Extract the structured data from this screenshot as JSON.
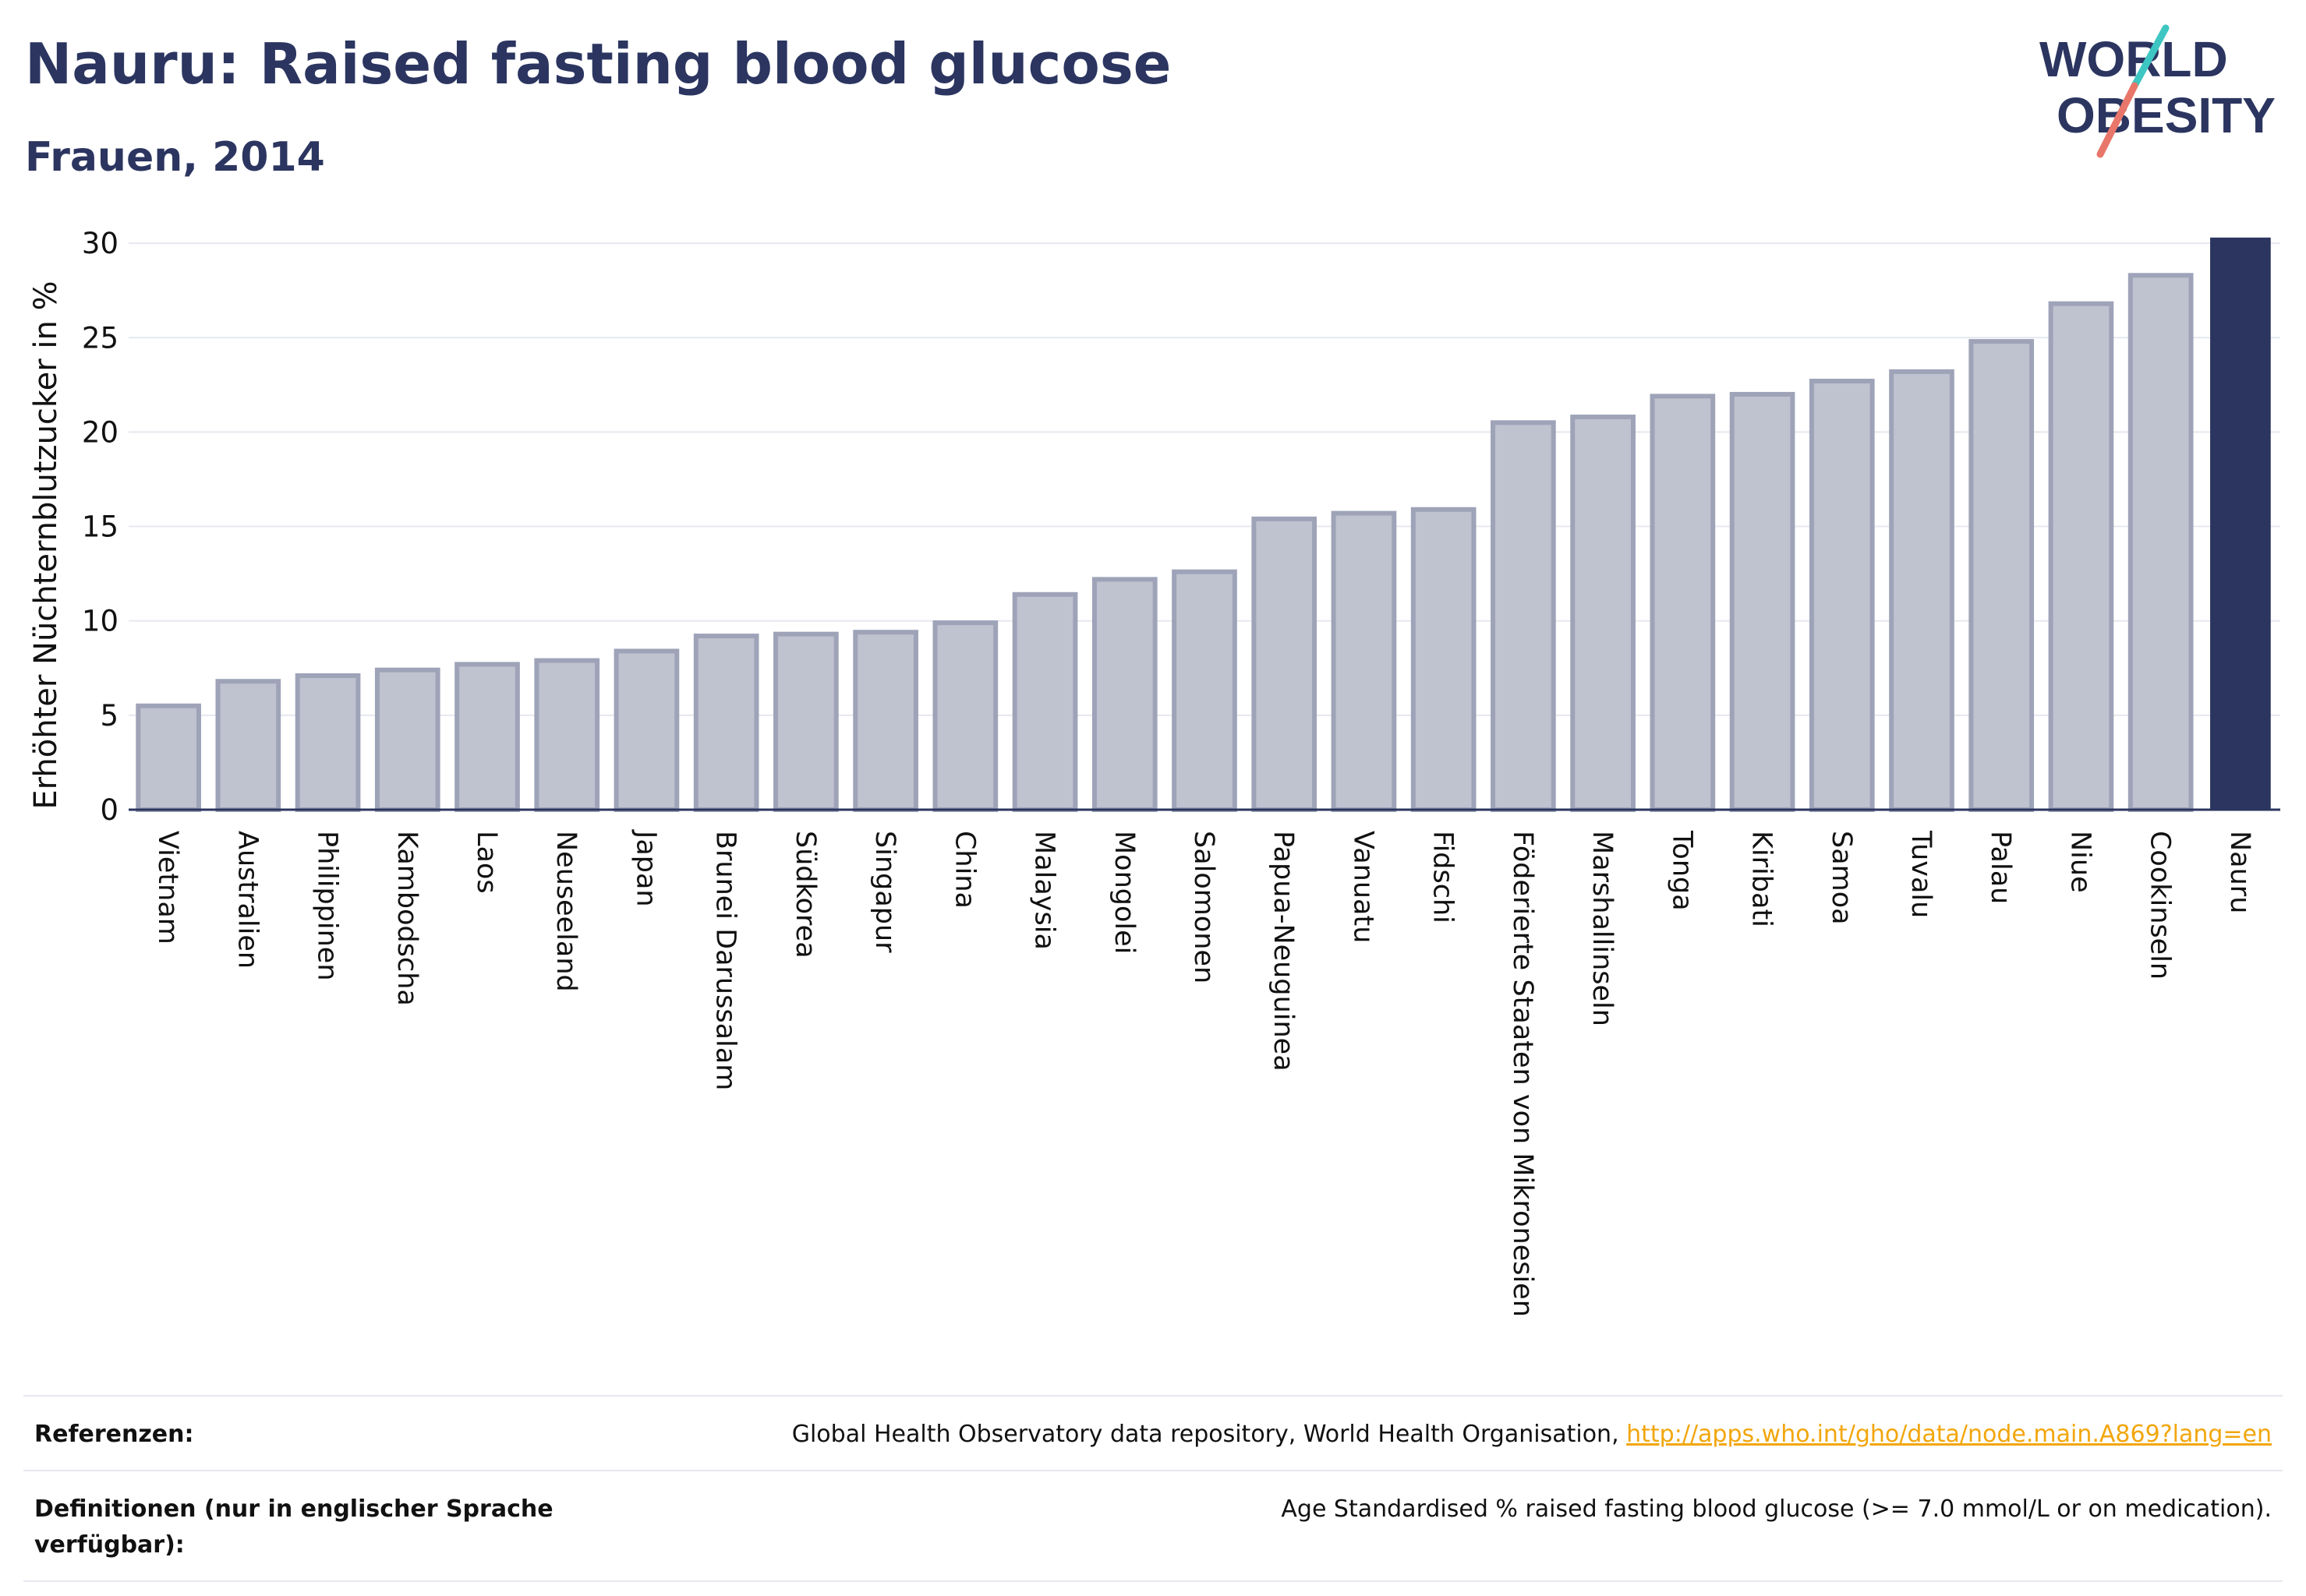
{
  "header": {
    "title": "Nauru: Raised fasting blood glucose",
    "subtitle": "Frauen, 2014"
  },
  "logo": {
    "line1": "WORLD",
    "line2": "OBESITY",
    "colors": {
      "text": "#2b3560",
      "teal": "#3ec6c2",
      "coral": "#e8766a"
    }
  },
  "chart_data": {
    "type": "bar",
    "title": "",
    "xlabel": "",
    "ylabel": "Erhöhter Nüchternblutzucker in %",
    "ylim": [
      0,
      30.5
    ],
    "yticks": [
      0,
      5,
      10,
      15,
      20,
      25,
      30
    ],
    "grid": true,
    "legend": "none",
    "categories": [
      "Vietnam",
      "Australien",
      "Philippinen",
      "Kambodscha",
      "Laos",
      "Neuseeland",
      "Japan",
      "Brunei Darussalam",
      "Südkorea",
      "Singapur",
      "China",
      "Malaysia",
      "Mongolei",
      "Salomonen",
      "Papua-Neuguinea",
      "Vanuatu",
      "Fidschi",
      "Föderierte Staaten von Mikronesien",
      "Marshallinseln",
      "Tonga",
      "Kiribati",
      "Samoa",
      "Tuvalu",
      "Palau",
      "Niue",
      "Cookinseln",
      "Nauru"
    ],
    "values": [
      5.5,
      6.8,
      7.1,
      7.4,
      7.7,
      7.9,
      8.4,
      9.2,
      9.3,
      9.4,
      9.9,
      11.4,
      12.2,
      12.6,
      15.4,
      15.7,
      15.9,
      20.5,
      20.8,
      21.9,
      22.0,
      22.7,
      23.2,
      24.8,
      26.8,
      28.3,
      30.3
    ],
    "highlight": "Nauru",
    "colors": {
      "bar": "#bfc2cf",
      "bar_border": "#9ea3b8",
      "highlight": "#2b3560",
      "grid": "#e6e8ef",
      "axis": "#2b3560"
    }
  },
  "references": [
    {
      "label": "Referenzen:",
      "text": "Global Health Observatory data repository, World Health Organisation, ",
      "link": "http://apps.who.int/gho/data/node.main.A869?lang=en"
    },
    {
      "label": "Definitionen (nur in englischer Sprache verfügbar):",
      "text": "Age Standardised % raised fasting blood glucose (>= 7.0 mmol/L or on medication).",
      "link": ""
    }
  ]
}
